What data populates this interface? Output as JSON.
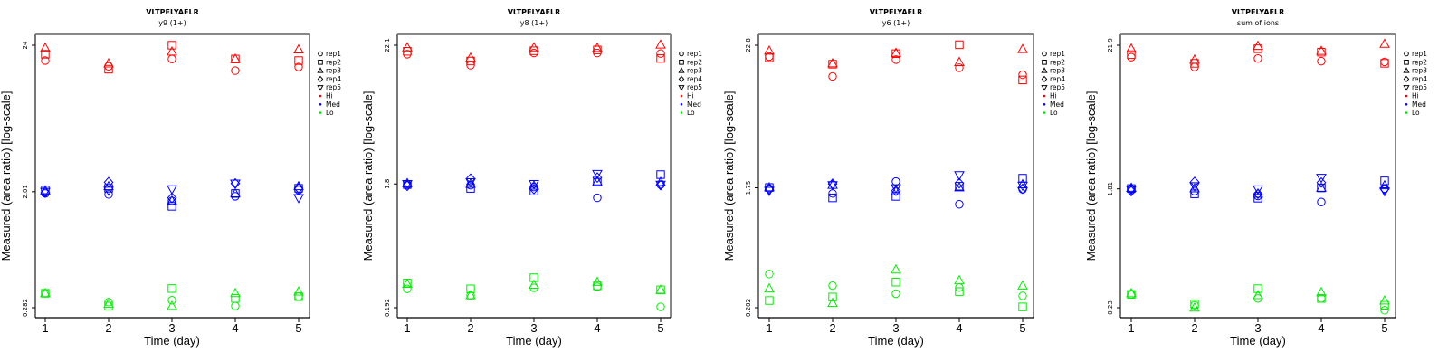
{
  "colors": {
    "Hi": "#ff0000",
    "Med": "#0000ff",
    "Lo": "#00ee00"
  },
  "legend": {
    "reps": [
      {
        "label": "rep1",
        "shape": "circle"
      },
      {
        "label": "rep2",
        "shape": "square"
      },
      {
        "label": "rep3",
        "shape": "triangle-up"
      },
      {
        "label": "rep4",
        "shape": "diamond"
      },
      {
        "label": "rep5",
        "shape": "triangle-down"
      }
    ],
    "groups": [
      {
        "label": "Hi",
        "color": "#ff0000"
      },
      {
        "label": "Med",
        "color": "#0000ff"
      },
      {
        "label": "Lo",
        "color": "#00ee00"
      }
    ]
  },
  "chart_data": [
    {
      "type": "scatter",
      "title": "VLTPELYAELR",
      "subtitle": "y9 (1+)",
      "xlabel": "Time (day)",
      "ylabel": "Measured (area ratio) [log-scale]",
      "yscale": "log",
      "x_ticks": [
        "1",
        "2",
        "3",
        "4",
        "5"
      ],
      "y_ticks": [
        {
          "value": 24,
          "label": "24"
        },
        {
          "value": 2.01,
          "label": "2.01"
        },
        {
          "value": 0.282,
          "label": "0.282"
        }
      ],
      "legend_position": "right",
      "series": {
        "Hi": {
          "rep1": [
            18.5,
            16.8,
            19.0,
            15.6,
            16.6
          ],
          "rep2": [
            20.6,
            16.0,
            24.0,
            19.0,
            18.5
          ],
          "rep3": [
            22.9,
            17.6,
            21.5,
            19.0,
            22.3
          ]
        },
        "Med": {
          "rep1": [
            1.95,
            1.92,
            1.72,
            1.86,
            2.07
          ],
          "rep2": [
            2.07,
            2.13,
            1.57,
            1.95,
            2.13
          ],
          "rep3": [
            2.05,
            2.2,
            1.72,
            1.95,
            2.2
          ],
          "rep4": [
            1.98,
            2.36,
            1.81,
            2.31,
            2.13
          ],
          "rep5": [
            2.01,
            2.05,
            2.1,
            2.31,
            1.81
          ]
        },
        "Lo": {
          "rep1": [
            0.36,
            0.31,
            0.32,
            0.29,
            0.34
          ],
          "rep2": [
            0.36,
            0.29,
            0.39,
            0.33,
            0.34
          ],
          "rep3": [
            0.36,
            0.3,
            0.29,
            0.36,
            0.37
          ]
        }
      }
    },
    {
      "type": "scatter",
      "title": "VLTPELYAELR",
      "subtitle": "y8 (1+)",
      "xlabel": "Time (day)",
      "ylabel": "Measured (area ratio) [log-scale]",
      "yscale": "log",
      "x_ticks": [
        "1",
        "2",
        "3",
        "4",
        "5"
      ],
      "y_ticks": [
        {
          "value": 22.1,
          "label": "22.1"
        },
        {
          "value": 1.8,
          "label": "1.8"
        },
        {
          "value": 0.192,
          "label": "0.192"
        }
      ],
      "legend_position": "right",
      "series": {
        "Hi": {
          "rep1": [
            18.8,
            15.4,
            19.2,
            19.2,
            19.0
          ],
          "rep2": [
            19.8,
            16.6,
            20.0,
            20.3,
            17.4
          ],
          "rep3": [
            21.2,
            17.6,
            21.2,
            21.0,
            22.3
          ]
        },
        "Med": {
          "rep1": [
            1.78,
            1.76,
            1.7,
            1.4,
            1.78
          ],
          "rep2": [
            1.78,
            1.66,
            1.58,
            1.86,
            2.13
          ],
          "rep3": [
            1.82,
            1.8,
            1.74,
            1.88,
            1.86
          ],
          "rep4": [
            1.74,
            1.98,
            1.64,
            2.02,
            1.76
          ],
          "rep5": [
            1.8,
            1.86,
            1.8,
            2.16,
            1.78
          ]
        },
        "Lo": {
          "rep1": [
            0.27,
            0.24,
            0.275,
            0.28,
            0.195
          ],
          "rep2": [
            0.3,
            0.27,
            0.33,
            0.285,
            0.265
          ],
          "rep3": [
            0.295,
            0.24,
            0.29,
            0.305,
            0.265
          ]
        }
      }
    },
    {
      "type": "scatter",
      "title": "VLTPELYAELR",
      "subtitle": "y6 (1+)",
      "xlabel": "Time (day)",
      "ylabel": "Measured (area ratio) [log-scale]",
      "yscale": "log",
      "x_ticks": [
        "1",
        "2",
        "3",
        "4",
        "5"
      ],
      "y_ticks": [
        {
          "value": 22.8,
          "label": "22.8"
        },
        {
          "value": 1.75,
          "label": "1.75"
        },
        {
          "value": 0.202,
          "label": "0.202"
        }
      ],
      "legend_position": "right",
      "series": {
        "Hi": {
          "rep1": [
            18.6,
            13.0,
            17.6,
            15.2,
            13.4
          ],
          "rep2": [
            18.2,
            16.2,
            19.6,
            23.0,
            12.2
          ],
          "rep3": [
            20.6,
            16.4,
            19.8,
            16.8,
            21.2
          ]
        },
        "Med": {
          "rep1": [
            1.72,
            1.58,
            1.96,
            1.3,
            1.7
          ],
          "rep2": [
            1.76,
            1.46,
            1.5,
            1.8,
            2.08
          ],
          "rep3": [
            1.76,
            1.84,
            1.64,
            1.76,
            1.86
          ],
          "rep4": [
            1.7,
            1.88,
            1.66,
            1.9,
            1.72
          ],
          "rep5": [
            1.66,
            1.84,
            1.74,
            2.2,
            1.82
          ]
        },
        "Lo": {
          "rep1": [
            0.37,
            0.3,
            0.26,
            0.29,
            0.25
          ],
          "rep2": [
            0.23,
            0.245,
            0.32,
            0.27,
            0.205
          ],
          "rep3": [
            0.285,
            0.22,
            0.4,
            0.33,
            0.3
          ]
        }
      }
    },
    {
      "type": "scatter",
      "title": "VLTPELYAELR",
      "subtitle": "sum of ions",
      "xlabel": "Time (day)",
      "ylabel": "Measured (area ratio) [log-scale]",
      "yscale": "log",
      "x_ticks": [
        "1",
        "2",
        "3",
        "4",
        "5"
      ],
      "y_ticks": [
        {
          "value": 21.9,
          "label": "21.9"
        },
        {
          "value": 1.81,
          "label": "1.81"
        },
        {
          "value": 0.23,
          "label": "0.23"
        }
      ],
      "legend_position": "right",
      "series": {
        "Hi": {
          "rep1": [
            17.8,
            15.0,
            17.4,
            16.6,
            16.4
          ],
          "rep2": [
            18.6,
            16.0,
            20.6,
            19.4,
            16.0
          ],
          "rep3": [
            20.6,
            17.0,
            21.6,
            19.8,
            22.4
          ]
        },
        "Med": {
          "rep1": [
            1.8,
            1.74,
            1.6,
            1.44,
            1.82
          ],
          "rep2": [
            1.82,
            1.66,
            1.54,
            1.84,
            2.08
          ],
          "rep3": [
            1.84,
            1.82,
            1.66,
            1.84,
            1.92
          ],
          "rep4": [
            1.74,
            2.04,
            1.66,
            2.02,
            1.8
          ],
          "rep5": [
            1.78,
            1.9,
            1.8,
            2.2,
            1.74
          ]
        },
        "Lo": {
          "rep1": [
            0.29,
            0.24,
            0.27,
            0.27,
            0.22
          ],
          "rep2": [
            0.29,
            0.245,
            0.32,
            0.27,
            0.24
          ],
          "rep3": [
            0.295,
            0.23,
            0.285,
            0.3,
            0.26
          ]
        }
      }
    }
  ]
}
